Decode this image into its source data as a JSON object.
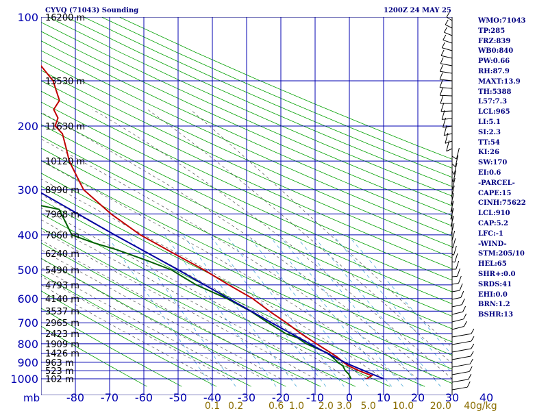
{
  "header": {
    "station": "CYVQ (71043) Sounding",
    "time": "1200Z 24 MAY 25"
  },
  "indices": [
    "WMO:71043",
    "TP:285",
    "FRZ:839",
    "WB0:840",
    "PW:0.66",
    "RH:87.9",
    "MAXT:13.9",
    "TH:5388",
    "L57:7.3",
    "LCL:965",
    "LI:5.1",
    "SI:2.3",
    "TT:54",
    "KI:26",
    "SW:170",
    "EI:0.6",
    "-PARCEL-",
    "CAPE:15",
    "CINH:75622",
    "LCL:910",
    "CAP:5.2",
    "LFC:-1",
    "-WIND-",
    "STM:205/10",
    "HEL:65",
    "SHR+:0.0",
    "SRDS:41",
    "EHI:0.0",
    "BRN:1.2",
    "BSHR:13"
  ],
  "chart_data": {
    "type": "line",
    "title": "CYVQ (71043) Sounding",
    "subtitle": "1200Z 24 MAY 25",
    "xlabel": "",
    "ylabel": "mb",
    "pressure_levels": [
      100,
      200,
      300,
      400,
      500,
      600,
      700,
      800,
      900,
      1000
    ],
    "pressure_range": [
      100,
      1050
    ],
    "temperature_range": [
      -80,
      40
    ],
    "temperature_ticks": [
      -80,
      -70,
      -60,
      -50,
      -40,
      -30,
      -20,
      -10,
      0,
      10,
      20,
      30,
      40
    ],
    "temperature_tick_labels": [
      "-80",
      "-70",
      "-60",
      "-50",
      "-40",
      "-30",
      "-20",
      "-10",
      "0",
      "10",
      "20",
      "30",
      "40"
    ],
    "height_labels": [
      {
        "p": 100,
        "label": "16200 m"
      },
      {
        "p": 150,
        "label": "13530 m"
      },
      {
        "p": 200,
        "label": "11630 m"
      },
      {
        "p": 250,
        "label": "10120 m"
      },
      {
        "p": 300,
        "label": "8990 m"
      },
      {
        "p": 350,
        "label": "7968 m"
      },
      {
        "p": 400,
        "label": "7060 m"
      },
      {
        "p": 450,
        "label": "6240 m"
      },
      {
        "p": 500,
        "label": "5490 m"
      },
      {
        "p": 550,
        "label": "4793 m"
      },
      {
        "p": 600,
        "label": "4140 m"
      },
      {
        "p": 650,
        "label": "3537 m"
      },
      {
        "p": 700,
        "label": "2965 m"
      },
      {
        "p": 750,
        "label": "2423 m"
      },
      {
        "p": 800,
        "label": "1909 m"
      },
      {
        "p": 850,
        "label": "1426 m"
      },
      {
        "p": 900,
        "label": "963 m"
      },
      {
        "p": 950,
        "label": "523 m"
      },
      {
        "p": 1000,
        "label": "102 m"
      }
    ],
    "mixing_ratio_labels": [
      {
        "w": 0.1,
        "label": "0.1"
      },
      {
        "w": 0.2,
        "label": "0.2"
      },
      {
        "w": 0.6,
        "label": "0.6"
      },
      {
        "w": 1.0,
        "label": "1.0"
      },
      {
        "w": 2.0,
        "label": "2.0"
      },
      {
        "w": 3.0,
        "label": "3.0"
      },
      {
        "w": 5.0,
        "label": "5.0"
      },
      {
        "w": 10.0,
        "label": "10.0"
      },
      {
        "w": 20.0,
        "label": "20.0"
      },
      {
        "w": 40.0,
        "label": "40g/kg"
      }
    ],
    "series": [
      {
        "name": "Temperature",
        "color": "#c00000",
        "points": [
          [
            1000,
            5.0
          ],
          [
            980,
            7.0
          ],
          [
            950,
            4.0
          ],
          [
            920,
            1.6
          ],
          [
            900,
            0.7
          ],
          [
            870,
            -0.4
          ],
          [
            850,
            -1.5
          ],
          [
            800,
            -4.5
          ],
          [
            750,
            -7.5
          ],
          [
            700,
            -10.2
          ],
          [
            650,
            -13.5
          ],
          [
            600,
            -16.5
          ],
          [
            550,
            -21.5
          ],
          [
            500,
            -26.5
          ],
          [
            450,
            -33.0
          ],
          [
            400,
            -40.0
          ],
          [
            350,
            -45.5
          ],
          [
            300,
            -50.0
          ],
          [
            280,
            -50.0
          ],
          [
            250,
            -50.0
          ],
          [
            230,
            -49.0
          ],
          [
            210,
            -48.0
          ],
          [
            200,
            -49.0
          ],
          [
            190,
            -47.0
          ],
          [
            180,
            -47.0
          ],
          [
            170,
            -44.0
          ],
          [
            150,
            -43.0
          ],
          [
            130,
            -45.0
          ],
          [
            120,
            -43.0
          ],
          [
            110,
            -44.0
          ],
          [
            100,
            -47.0
          ]
        ]
      },
      {
        "name": "Dewpoint",
        "color": "#006000",
        "points": [
          [
            1000,
            0.5
          ],
          [
            970,
            0.5
          ],
          [
            950,
            0.0
          ],
          [
            920,
            0.0
          ],
          [
            900,
            -1.0
          ],
          [
            880,
            -1.5
          ],
          [
            850,
            -2.5
          ],
          [
            800,
            -7.5
          ],
          [
            770,
            -9.2
          ],
          [
            750,
            -12.0
          ],
          [
            700,
            -15.5
          ],
          [
            650,
            -19.0
          ],
          [
            600,
            -24.0
          ],
          [
            550,
            -31.0
          ],
          [
            520,
            -34.0
          ],
          [
            500,
            -36.0
          ],
          [
            470,
            -42.0
          ],
          [
            440,
            -49.0
          ],
          [
            420,
            -55.0
          ],
          [
            400,
            -60.0
          ],
          [
            370,
            -60.0
          ],
          [
            340,
            -60.0
          ],
          [
            330,
            -66.0
          ],
          [
            320,
            -70.0
          ],
          [
            310,
            -74.0
          ],
          [
            300,
            -75.0
          ],
          [
            260,
            -80.0
          ],
          [
            230,
            -82.0
          ],
          [
            215,
            -85.0
          ],
          [
            200,
            -86.0
          ]
        ]
      },
      {
        "name": "Parcel",
        "color": "#0000a0",
        "points": [
          [
            1000,
            10.0
          ],
          [
            950,
            5.5
          ],
          [
            910,
            1.8
          ],
          [
            850,
            -2.8
          ],
          [
            800,
            -6.5
          ],
          [
            700,
            -14.5
          ],
          [
            600,
            -23.5
          ],
          [
            500,
            -34.0
          ],
          [
            400,
            -47.5
          ],
          [
            300,
            -64.0
          ],
          [
            250,
            -74.0
          ],
          [
            220,
            -82.0
          ]
        ]
      }
    ],
    "grid": true,
    "legend": "none"
  }
}
